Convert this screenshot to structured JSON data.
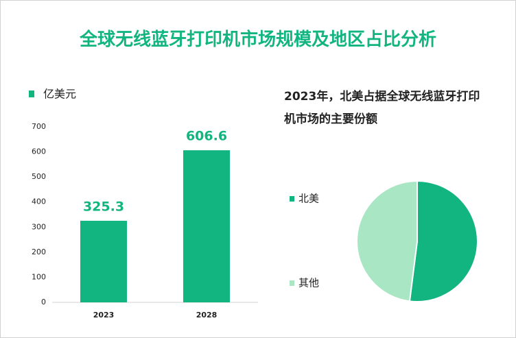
{
  "title": "全球无线蓝牙打印机市场规模及地区占比分析",
  "chart_data": [
    {
      "type": "bar",
      "legend": "亿美元",
      "color": "#12b57f",
      "categories": [
        "2023",
        "2028"
      ],
      "values": [
        325.3,
        606.6
      ],
      "ylim": [
        0,
        700
      ],
      "yticks": [
        0,
        100,
        200,
        300,
        400,
        500,
        600,
        700
      ]
    },
    {
      "type": "pie",
      "title": "2023年，北美占据全球无线蓝牙打印机市场的主要份额",
      "categories": [
        "北美",
        "其他"
      ],
      "values": [
        52,
        48
      ],
      "colors": [
        "#12b57f",
        "#a8e6c4"
      ]
    }
  ]
}
